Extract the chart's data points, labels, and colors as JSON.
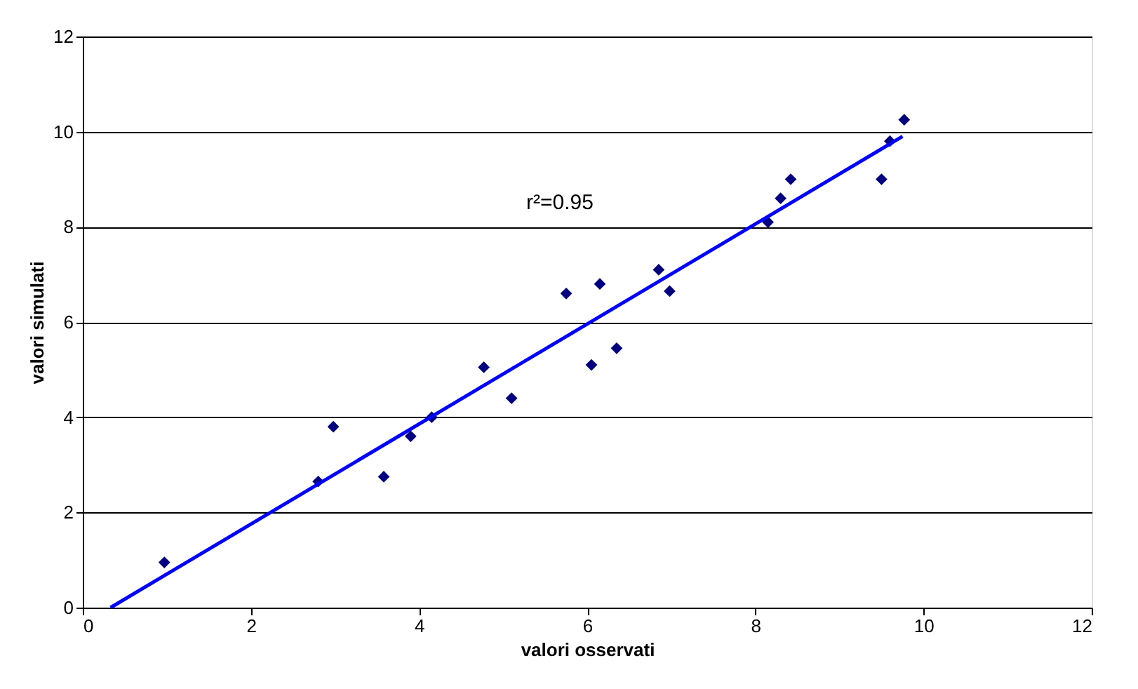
{
  "chart_data": {
    "type": "scatter",
    "xlabel": "valori osservati",
    "ylabel": "valori simulati",
    "xlim": [
      0,
      12
    ],
    "ylim": [
      0,
      12
    ],
    "xticks": [
      0,
      2,
      4,
      6,
      8,
      10,
      12
    ],
    "yticks": [
      0,
      2,
      4,
      6,
      8,
      10,
      12
    ],
    "grid": "y",
    "annotations": [
      "r²=0.95"
    ],
    "series": [
      {
        "color": "#000080",
        "marker": "diamond",
        "x": [
          0.97,
          2.8,
          2.98,
          3.58,
          3.9,
          4.15,
          4.77,
          5.1,
          5.75,
          6.05,
          6.15,
          6.35,
          6.85,
          6.98,
          8.15,
          8.3,
          8.42,
          9.5,
          9.6,
          9.77
        ],
        "values": [
          0.95,
          2.65,
          3.8,
          2.75,
          3.6,
          4.0,
          5.05,
          4.4,
          6.6,
          5.1,
          6.8,
          5.45,
          7.1,
          6.65,
          8.1,
          8.6,
          9.0,
          9.0,
          9.8,
          10.25
        ]
      },
      {
        "type": "line",
        "color": "#0000ff",
        "line_style": "solid",
        "marker": "none",
        "x": [
          0.33,
          9.75
        ],
        "values": [
          0,
          9.9
        ]
      }
    ]
  }
}
